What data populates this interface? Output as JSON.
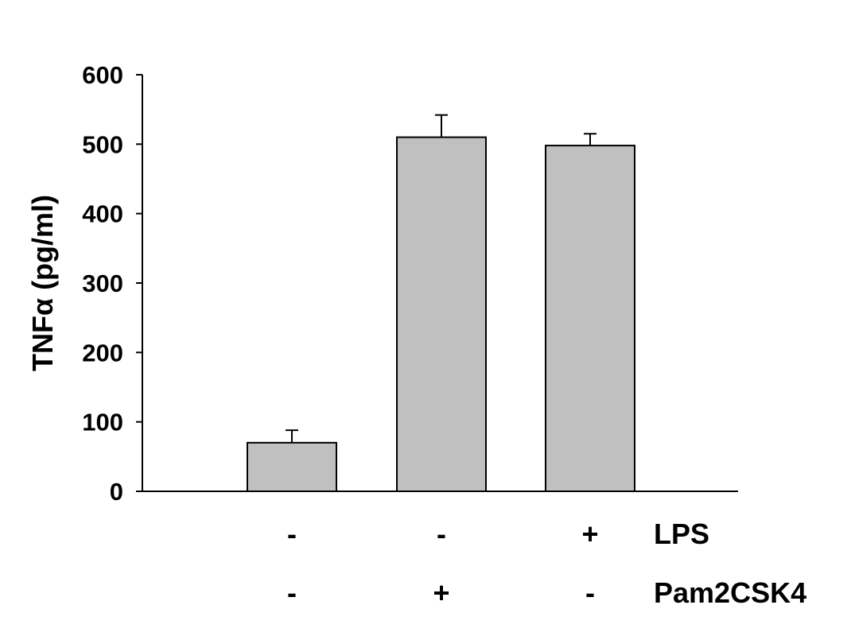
{
  "chart_data": {
    "type": "bar",
    "title": "",
    "xlabel": "",
    "ylabel": "TNFα (pg/ml)",
    "ylim": [
      0,
      600
    ],
    "yticks": [
      0,
      100,
      200,
      300,
      400,
      500,
      600
    ],
    "categories": [
      "LPS - / Pam2CSK4 -",
      "LPS - / Pam2CSK4 +",
      "LPS + / Pam2CSK4 -"
    ],
    "values": [
      70,
      510,
      498
    ],
    "errors": [
      18,
      32,
      17
    ],
    "bar_color": "#c0c0c0",
    "grid": false,
    "treatments": [
      {
        "name": "LPS",
        "signs": [
          "-",
          "-",
          "+"
        ]
      },
      {
        "name": "Pam2CSK4",
        "signs": [
          "-",
          "+",
          "-"
        ]
      }
    ]
  }
}
